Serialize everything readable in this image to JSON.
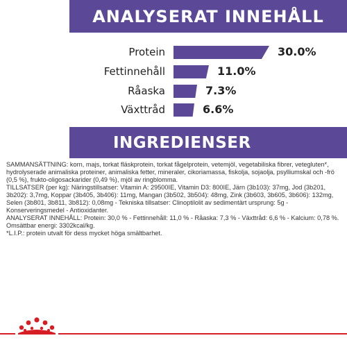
{
  "header": {
    "title": "ANALYSERAT INNEHÅLL"
  },
  "analysis": [
    {
      "label": "Protein",
      "value_text": "30.0%",
      "percent": 30.0
    },
    {
      "label": "Fettinnehåll",
      "value_text": "11.0%",
      "percent": 11.0
    },
    {
      "label": "Råaska",
      "value_text": "7.3%",
      "percent": 7.3
    },
    {
      "label": "Växttråd",
      "value_text": "6.6%",
      "percent": 6.6
    }
  ],
  "ingredients_header": {
    "title": "INGREDIENSER"
  },
  "ingredients": {
    "composition": "SAMMANSÄTTNING: korn, majs, torkat fläskprotein, torkat fågelprotein, vetemjöl, vegetabiliska fibrer, vetegluten*, hydrolyserade animaliska proteiner, animaliska fetter, mineraler, cikoriamassa, fiskolja, sojaolja, psylliumskal och -frö (0,5 %), frukto-oligosackarider (0,49 %), mjöl av ringblomma.",
    "additives": "TILLSATSER (per kg): Näringstillsatser: Vitamin A: 29500IE, Vitamin D3: 800IE, Järn (3b103): 37mg, Jod (3b201, 3b202): 3,7mg, Koppar (3b405, 3b406): 11mg, Mangan (3b502, 3b504): 48mg, Zink (3b603, 3b605, 3b606): 132mg, Selen (3b801, 3b811, 3b812): 0,08mg - Tekniska tillsatser: Clinoptilolit av sedimentärt ursprung: 5g - Konserveringsmedel - Antioxidanter.",
    "analysis": "ANALYSERAT INNEHÅLL: Protein: 30,0 % - Fettinnehåll: 11,0 % - Råaska: 7,3 % - Växttråd: 6,6 % - Kalcium: 0,78 %. Omsättbar energi: 3302kcal/kg.",
    "note": "*L.I.P.: protein utvalt för dess mycket höga smältbarhet."
  },
  "colors": {
    "brand_purple": "#5b4897",
    "brand_red": "#d71d24"
  },
  "footer": {
    "logo_icon": "royal-canin-crown-icon"
  }
}
